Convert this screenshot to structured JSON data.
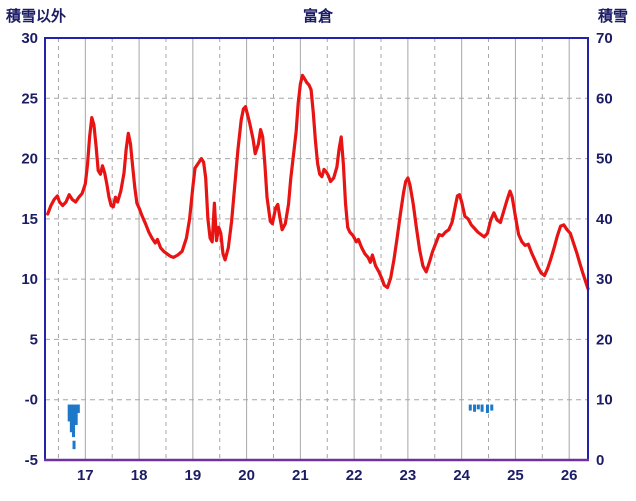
{
  "header": {
    "left_label": "積雪以外",
    "title": "富倉",
    "right_label": "積雪"
  },
  "chart_data": {
    "type": "line",
    "title": "富倉",
    "left_axis": {
      "label": "積雪以外",
      "min": -5,
      "max": 30,
      "ticks": [
        {
          "v": 30,
          "t": "30"
        },
        {
          "v": 25,
          "t": "25"
        },
        {
          "v": 20,
          "t": "20"
        },
        {
          "v": 15,
          "t": "15"
        },
        {
          "v": 10,
          "t": "10"
        },
        {
          "v": 5,
          "t": "5"
        },
        {
          "v": 0,
          "t": "-0"
        },
        {
          "v": -5,
          "t": "-5"
        }
      ]
    },
    "right_axis": {
      "label": "積雪",
      "min": 0,
      "max": 70,
      "ticks": [
        {
          "v": 70,
          "t": "70"
        },
        {
          "v": 60,
          "t": "60"
        },
        {
          "v": 50,
          "t": "50"
        },
        {
          "v": 40,
          "t": "40"
        },
        {
          "v": 30,
          "t": "30"
        },
        {
          "v": 20,
          "t": "20"
        },
        {
          "v": 10,
          "t": "10"
        },
        {
          "v": 0,
          "t": "0"
        }
      ]
    },
    "x_axis": {
      "min": 16.25,
      "max": 26.35,
      "ticks": [
        {
          "v": 17,
          "t": "17"
        },
        {
          "v": 18,
          "t": "18"
        },
        {
          "v": 19,
          "t": "19"
        },
        {
          "v": 20,
          "t": "20"
        },
        {
          "v": 21,
          "t": "21"
        },
        {
          "v": 22,
          "t": "22"
        },
        {
          "v": 23,
          "t": "23"
        },
        {
          "v": 24,
          "t": "24"
        },
        {
          "v": 25,
          "t": "25"
        },
        {
          "v": 26,
          "t": "26"
        }
      ]
    },
    "grid": {
      "h_values": [
        25,
        20,
        15,
        10,
        5,
        0
      ],
      "v_solid": [
        17,
        18,
        19,
        20,
        21,
        22,
        23,
        24,
        25,
        26
      ],
      "v_dashed": [
        16.5,
        17.5,
        18.5,
        19.5,
        20.5,
        21.5,
        22.5,
        23.5,
        24.5,
        25.5
      ]
    },
    "colors": {
      "line": "#e81313",
      "bars": "#1e78c8",
      "frame": "#2222aa",
      "grid": "#a6a6a6",
      "baseline": "#7030a0",
      "text": "#1c1c66"
    },
    "series": [
      {
        "name": "temperature-line",
        "color": "#e81313",
        "points": [
          [
            16.3,
            15.4
          ],
          [
            16.36,
            16.1
          ],
          [
            16.42,
            16.6
          ],
          [
            16.48,
            16.9
          ],
          [
            16.52,
            16.4
          ],
          [
            16.58,
            16.1
          ],
          [
            16.64,
            16.4
          ],
          [
            16.7,
            17.0
          ],
          [
            16.76,
            16.6
          ],
          [
            16.82,
            16.4
          ],
          [
            16.88,
            16.8
          ],
          [
            16.94,
            17.1
          ],
          [
            17.0,
            17.9
          ],
          [
            17.04,
            19.5
          ],
          [
            17.08,
            21.8
          ],
          [
            17.12,
            23.4
          ],
          [
            17.16,
            22.8
          ],
          [
            17.2,
            21.0
          ],
          [
            17.24,
            19.0
          ],
          [
            17.28,
            18.7
          ],
          [
            17.32,
            19.4
          ],
          [
            17.36,
            18.8
          ],
          [
            17.4,
            17.9
          ],
          [
            17.44,
            16.8
          ],
          [
            17.48,
            16.1
          ],
          [
            17.52,
            16.0
          ],
          [
            17.56,
            16.8
          ],
          [
            17.6,
            16.4
          ],
          [
            17.66,
            17.3
          ],
          [
            17.72,
            18.8
          ],
          [
            17.76,
            20.8
          ],
          [
            17.8,
            22.1
          ],
          [
            17.84,
            21.2
          ],
          [
            17.88,
            19.4
          ],
          [
            17.92,
            17.6
          ],
          [
            17.96,
            16.3
          ],
          [
            18.0,
            15.9
          ],
          [
            18.06,
            15.2
          ],
          [
            18.12,
            14.6
          ],
          [
            18.18,
            13.9
          ],
          [
            18.24,
            13.4
          ],
          [
            18.3,
            13.0
          ],
          [
            18.34,
            13.3
          ],
          [
            18.4,
            12.6
          ],
          [
            18.46,
            12.3
          ],
          [
            18.52,
            12.1
          ],
          [
            18.58,
            11.9
          ],
          [
            18.64,
            11.8
          ],
          [
            18.72,
            12.0
          ],
          [
            18.8,
            12.3
          ],
          [
            18.88,
            13.4
          ],
          [
            18.94,
            15.0
          ],
          [
            19.0,
            17.6
          ],
          [
            19.04,
            19.2
          ],
          [
            19.1,
            19.6
          ],
          [
            19.16,
            20.0
          ],
          [
            19.2,
            19.7
          ],
          [
            19.24,
            18.4
          ],
          [
            19.28,
            15.0
          ],
          [
            19.32,
            13.4
          ],
          [
            19.36,
            13.1
          ],
          [
            19.4,
            16.3
          ],
          [
            19.44,
            13.2
          ],
          [
            19.48,
            14.3
          ],
          [
            19.52,
            13.8
          ],
          [
            19.56,
            12.1
          ],
          [
            19.6,
            11.6
          ],
          [
            19.66,
            12.6
          ],
          [
            19.72,
            14.8
          ],
          [
            19.78,
            17.8
          ],
          [
            19.84,
            20.8
          ],
          [
            19.9,
            23.2
          ],
          [
            19.94,
            24.1
          ],
          [
            19.98,
            24.3
          ],
          [
            20.02,
            23.6
          ],
          [
            20.06,
            22.9
          ],
          [
            20.12,
            21.6
          ],
          [
            20.16,
            20.4
          ],
          [
            20.22,
            21.2
          ],
          [
            20.26,
            22.4
          ],
          [
            20.3,
            21.8
          ],
          [
            20.34,
            19.5
          ],
          [
            20.38,
            16.8
          ],
          [
            20.44,
            14.8
          ],
          [
            20.48,
            14.6
          ],
          [
            20.54,
            15.9
          ],
          [
            20.58,
            16.2
          ],
          [
            20.62,
            15.1
          ],
          [
            20.66,
            14.1
          ],
          [
            20.72,
            14.6
          ],
          [
            20.78,
            16.2
          ],
          [
            20.82,
            18.3
          ],
          [
            20.88,
            20.6
          ],
          [
            20.92,
            22.2
          ],
          [
            20.96,
            24.6
          ],
          [
            21.0,
            26.2
          ],
          [
            21.04,
            26.9
          ],
          [
            21.08,
            26.6
          ],
          [
            21.12,
            26.3
          ],
          [
            21.16,
            26.1
          ],
          [
            21.2,
            25.7
          ],
          [
            21.24,
            23.8
          ],
          [
            21.28,
            21.5
          ],
          [
            21.32,
            19.6
          ],
          [
            21.36,
            18.7
          ],
          [
            21.4,
            18.5
          ],
          [
            21.44,
            19.1
          ],
          [
            21.48,
            18.9
          ],
          [
            21.52,
            18.6
          ],
          [
            21.56,
            18.1
          ],
          [
            21.62,
            18.4
          ],
          [
            21.68,
            19.3
          ],
          [
            21.72,
            20.8
          ],
          [
            21.76,
            21.8
          ],
          [
            21.8,
            19.5
          ],
          [
            21.84,
            16.3
          ],
          [
            21.88,
            14.3
          ],
          [
            21.92,
            13.9
          ],
          [
            21.98,
            13.6
          ],
          [
            22.04,
            13.1
          ],
          [
            22.08,
            13.3
          ],
          [
            22.14,
            12.6
          ],
          [
            22.2,
            12.1
          ],
          [
            22.26,
            11.8
          ],
          [
            22.3,
            11.4
          ],
          [
            22.34,
            12.0
          ],
          [
            22.4,
            11.1
          ],
          [
            22.46,
            10.6
          ],
          [
            22.52,
            10.0
          ],
          [
            22.56,
            9.5
          ],
          [
            22.62,
            9.3
          ],
          [
            22.68,
            10.1
          ],
          [
            22.74,
            11.6
          ],
          [
            22.8,
            13.4
          ],
          [
            22.86,
            15.4
          ],
          [
            22.92,
            17.2
          ],
          [
            22.96,
            18.1
          ],
          [
            23.0,
            18.4
          ],
          [
            23.04,
            17.8
          ],
          [
            23.1,
            16.2
          ],
          [
            23.16,
            14.2
          ],
          [
            23.22,
            12.4
          ],
          [
            23.28,
            11.1
          ],
          [
            23.34,
            10.6
          ],
          [
            23.4,
            11.4
          ],
          [
            23.46,
            12.3
          ],
          [
            23.52,
            13.0
          ],
          [
            23.58,
            13.7
          ],
          [
            23.64,
            13.6
          ],
          [
            23.7,
            13.9
          ],
          [
            23.76,
            14.1
          ],
          [
            23.82,
            14.7
          ],
          [
            23.88,
            16.0
          ],
          [
            23.92,
            16.9
          ],
          [
            23.96,
            17.0
          ],
          [
            24.0,
            16.4
          ],
          [
            24.06,
            15.2
          ],
          [
            24.12,
            15.0
          ],
          [
            24.18,
            14.5
          ],
          [
            24.24,
            14.2
          ],
          [
            24.3,
            13.9
          ],
          [
            24.36,
            13.7
          ],
          [
            24.42,
            13.5
          ],
          [
            24.48,
            13.8
          ],
          [
            24.54,
            14.9
          ],
          [
            24.6,
            15.5
          ],
          [
            24.66,
            14.9
          ],
          [
            24.72,
            14.7
          ],
          [
            24.78,
            15.6
          ],
          [
            24.84,
            16.5
          ],
          [
            24.9,
            17.3
          ],
          [
            24.94,
            16.8
          ],
          [
            25.0,
            15.2
          ],
          [
            25.06,
            13.7
          ],
          [
            25.12,
            13.1
          ],
          [
            25.18,
            12.8
          ],
          [
            25.24,
            12.9
          ],
          [
            25.3,
            12.2
          ],
          [
            25.36,
            11.6
          ],
          [
            25.42,
            11.0
          ],
          [
            25.48,
            10.5
          ],
          [
            25.54,
            10.3
          ],
          [
            25.6,
            10.9
          ],
          [
            25.66,
            11.7
          ],
          [
            25.72,
            12.6
          ],
          [
            25.78,
            13.6
          ],
          [
            25.84,
            14.4
          ],
          [
            25.9,
            14.5
          ],
          [
            25.96,
            14.1
          ],
          [
            26.02,
            13.8
          ],
          [
            26.08,
            13.0
          ],
          [
            26.14,
            12.2
          ],
          [
            26.2,
            11.3
          ],
          [
            26.26,
            10.4
          ],
          [
            26.32,
            9.6
          ],
          [
            26.35,
            9.2
          ]
        ]
      }
    ],
    "bars": {
      "name": "snow-bars",
      "color": "#1e78c8",
      "width": 3,
      "items": [
        [
          16.7,
          -0.4,
          -1.8
        ],
        [
          16.74,
          -0.4,
          -2.7
        ],
        [
          16.78,
          -0.4,
          -3.1
        ],
        [
          16.79,
          -3.4,
          -4.1
        ],
        [
          16.83,
          -0.4,
          -2.1
        ],
        [
          16.87,
          -0.4,
          -1.1
        ],
        [
          24.16,
          -0.4,
          -0.9
        ],
        [
          24.24,
          -0.4,
          -1.0
        ],
        [
          24.31,
          -0.4,
          -0.8
        ],
        [
          24.38,
          -0.4,
          -1.0
        ],
        [
          24.48,
          -0.4,
          -1.1
        ],
        [
          24.56,
          -0.4,
          -0.9
        ]
      ]
    }
  }
}
